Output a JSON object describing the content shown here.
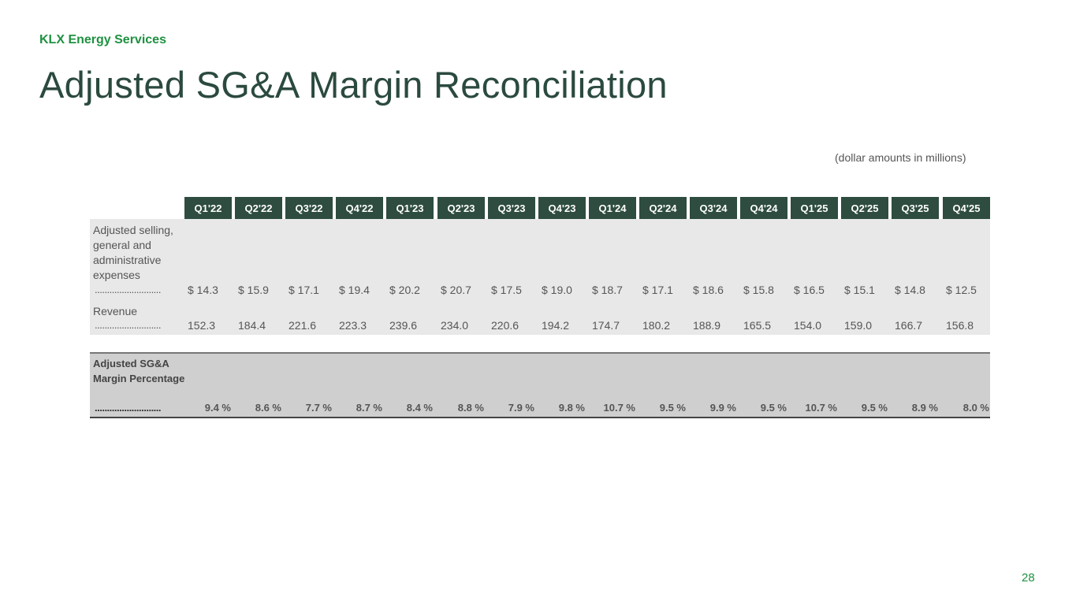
{
  "brand": "KLX Energy Services",
  "title": "Adjusted SG&A Margin Reconciliation",
  "note": "(dollar amounts in millions)",
  "page_number": "28",
  "table": {
    "columns": [
      "Q1'22",
      "Q2'22",
      "Q3'22",
      "Q4'22",
      "Q1'23",
      "Q2'23",
      "Q3'23",
      "Q4'23",
      "Q1'24",
      "Q2'24",
      "Q3'24",
      "Q4'24",
      "Q1'25",
      "Q2'25",
      "Q3'25",
      "Q4'25"
    ],
    "rows": [
      {
        "label": "Adjusted selling, general and administrative expenses",
        "dots": "...........................",
        "values": [
          "$ 14.3",
          "$ 15.9",
          "$ 17.1",
          "$ 19.4",
          "$ 20.2",
          "$ 20.7",
          "$ 17.5",
          "$ 19.0",
          "$ 18.7",
          "$ 17.1",
          "$ 18.6",
          "$ 15.8",
          "$ 16.5",
          "$ 15.1",
          "$ 14.8",
          "$ 12.5"
        ]
      },
      {
        "label": "Revenue",
        "dots": "...........................",
        "values": [
          "152.3",
          "184.4",
          "221.6",
          "223.3",
          "239.6",
          "234.0",
          "220.6",
          "194.2",
          "174.7",
          "180.2",
          "188.9",
          "165.5",
          "154.0",
          "159.0",
          "166.7",
          "156.8"
        ]
      }
    ],
    "margin": {
      "label": "Adjusted SG&A Margin Percentage",
      "dots": "...........................",
      "values": [
        "9.4 %",
        "8.6 %",
        "7.7 %",
        "8.7 %",
        "8.4 %",
        "8.8 %",
        "7.9 %",
        "9.8 %",
        "10.7 %",
        "9.5 %",
        "9.9 %",
        "9.5 %",
        "10.7 %",
        "9.5 %",
        "8.9 %",
        "8.0 %"
      ]
    }
  }
}
